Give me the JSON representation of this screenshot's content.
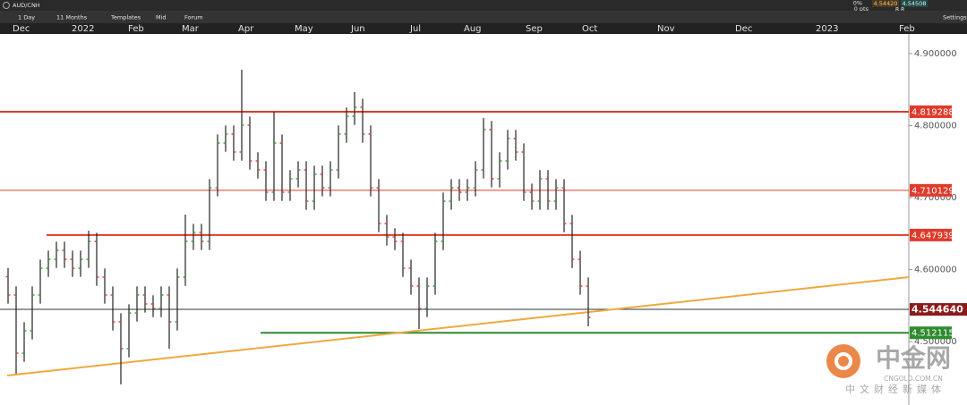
{
  "toolbar": {
    "symbol": "AUD/CNH",
    "interval": "1 Day",
    "range": "11 Months",
    "templates": "Templates",
    "price_mode": "Mid",
    "forum": "Forum",
    "settings": "Settings",
    "change_pct": "0%",
    "change_pts": "0 pts",
    "bid": "4.54420",
    "ask": "4.54508",
    "spread": "8.8"
  },
  "watermark": {
    "brand": "中金网",
    "domain": "CNGOLD.COM.CN",
    "slogan": "中文财经新媒体"
  },
  "chart_data": {
    "type": "ohlc",
    "x": [
      0,
      3,
      6,
      9,
      12,
      15,
      18,
      21,
      24,
      27,
      30,
      33,
      36,
      39,
      42,
      45,
      48,
      51,
      54,
      57,
      60,
      63,
      66,
      69,
      72,
      75,
      78,
      81,
      84,
      87,
      90,
      93,
      96,
      99,
      102,
      105,
      108,
      111,
      114,
      117,
      120,
      123,
      126,
      129,
      132,
      135,
      138,
      141,
      144,
      147,
      150,
      153,
      156,
      159,
      162,
      165,
      168,
      171,
      174,
      177,
      180,
      183,
      186,
      189,
      192,
      195,
      198,
      201,
      204,
      207,
      210,
      213,
      216
    ],
    "open": [
      4.59,
      4.5646,
      4.4838,
      4.5149,
      4.5646,
      4.6018,
      4.6143,
      4.6267,
      4.6143,
      4.6018,
      4.6143,
      4.6391,
      4.5894,
      4.5646,
      4.5273,
      4.49,
      4.5397,
      4.5646,
      4.5522,
      4.5459,
      4.5646,
      4.5273,
      4.5894,
      4.6391,
      4.6515,
      4.6391,
      4.7136,
      4.7757,
      4.7882,
      4.7633,
      4.8006,
      4.7509,
      4.7385,
      4.7074,
      4.7757,
      4.7074,
      4.7261,
      4.7385,
      4.695,
      4.7323,
      4.7136,
      4.7385,
      4.7882,
      4.813,
      4.8254,
      4.7882,
      4.7136,
      4.6639,
      4.6453,
      4.6391,
      4.6018,
      4.577,
      4.5459,
      4.577,
      4.6391,
      4.695,
      4.7136,
      4.7074,
      4.7136,
      4.7385,
      4.7944,
      4.7261,
      4.7509,
      4.782,
      4.7633,
      4.7074,
      4.695,
      4.7261,
      4.695,
      4.7136,
      4.6639,
      4.6142,
      4.577
    ],
    "high": [
      4.602,
      4.5766,
      4.5269,
      4.5766,
      4.6138,
      4.6263,
      4.6387,
      4.6387,
      4.6263,
      4.6263,
      4.654,
      4.6511,
      4.6014,
      4.5766,
      4.5393,
      4.5517,
      4.5766,
      4.5766,
      4.5642,
      4.5766,
      4.5766,
      4.6014,
      4.6764,
      4.6635,
      4.6635,
      4.7256,
      4.7877,
      4.8002,
      4.8002,
      4.8776,
      4.8126,
      4.7629,
      4.7505,
      4.8192,
      4.7877,
      4.7381,
      4.7505,
      4.7505,
      4.7443,
      4.7443,
      4.7505,
      4.8002,
      4.825,
      4.8466,
      4.8374,
      4.8002,
      4.7256,
      4.6759,
      4.6573,
      4.6511,
      4.6138,
      4.589,
      4.589,
      4.6511,
      4.707,
      4.7256,
      4.7256,
      4.7256,
      4.7505,
      4.8105,
      4.8064,
      4.7629,
      4.794,
      4.794,
      4.7753,
      4.7194,
      4.7381,
      4.7381,
      4.7256,
      4.7256,
      4.6759,
      4.6262,
      4.589
    ],
    "low": [
      4.5526,
      4.4553,
      4.4718,
      4.5029,
      4.5526,
      4.5898,
      4.6023,
      4.6023,
      4.5898,
      4.5898,
      4.6023,
      4.5774,
      4.5526,
      4.5153,
      4.4404,
      4.478,
      4.5277,
      4.5402,
      4.5339,
      4.5339,
      4.49,
      4.5153,
      4.5774,
      4.6271,
      4.6271,
      4.6271,
      4.7016,
      4.7637,
      4.7513,
      4.7513,
      4.7389,
      4.7265,
      4.6954,
      4.6954,
      4.6954,
      4.6954,
      4.7141,
      4.683,
      4.683,
      4.7016,
      4.7016,
      4.7265,
      4.7762,
      4.801,
      4.7762,
      4.7016,
      4.6519,
      4.6333,
      4.6271,
      4.5898,
      4.565,
      4.5174,
      4.5339,
      4.565,
      4.6271,
      4.683,
      4.6954,
      4.6954,
      4.7016,
      4.7265,
      4.7141,
      4.7141,
      4.7389,
      4.7513,
      4.6954,
      4.683,
      4.683,
      4.683,
      4.683,
      4.6519,
      4.6022,
      4.565,
      4.5211
    ],
    "close": [
      4.5646,
      4.4838,
      4.5149,
      4.5646,
      4.6018,
      4.6143,
      4.6267,
      4.6143,
      4.6018,
      4.6143,
      4.6391,
      4.5894,
      4.5646,
      4.5273,
      4.49,
      4.5397,
      4.5646,
      4.5522,
      4.5459,
      4.5646,
      4.5273,
      4.5894,
      4.6391,
      4.6515,
      4.6391,
      4.7136,
      4.7757,
      4.7882,
      4.7633,
      4.8006,
      4.7509,
      4.7385,
      4.7074,
      4.7757,
      4.7074,
      4.7261,
      4.7385,
      4.695,
      4.7323,
      4.7136,
      4.7385,
      4.7882,
      4.813,
      4.8254,
      4.7882,
      4.7136,
      4.6639,
      4.6453,
      4.6391,
      4.6018,
      4.577,
      4.5459,
      4.577,
      4.6391,
      4.695,
      4.7136,
      4.7074,
      4.7136,
      4.7385,
      4.7944,
      4.7261,
      4.7509,
      4.782,
      4.7633,
      4.7074,
      4.695,
      4.7261,
      4.695,
      4.7136,
      4.6639,
      4.6142,
      4.577,
      4.5335
    ],
    "up_color": "#3a9a3a",
    "down_color": "#d04040",
    "bar_color": "#222222",
    "xlim": [
      -3,
      335.33
    ],
    "xticks": [
      {
        "value": 1,
        "label": "Dec"
      },
      {
        "value": 23,
        "label": "2022"
      },
      {
        "value": 44,
        "label": "Feb"
      },
      {
        "value": 64,
        "label": "Mar"
      },
      {
        "value": 85,
        "label": "Apr"
      },
      {
        "value": 106,
        "label": "May"
      },
      {
        "value": 127,
        "label": "Jun"
      },
      {
        "value": 149,
        "label": "Jul"
      },
      {
        "value": 169,
        "label": "Aug"
      },
      {
        "value": 192,
        "label": "Sep"
      },
      {
        "value": 213,
        "label": "Oct"
      },
      {
        "value": 241,
        "label": "Nov"
      },
      {
        "value": 270,
        "label": "Dec"
      },
      {
        "value": 300,
        "label": "2023"
      },
      {
        "value": 331,
        "label": "Feb"
      }
    ],
    "ylim": [
      4.4118,
      4.9273
    ],
    "yticks": [
      {
        "value": 4.9,
        "label": "4.900000"
      },
      {
        "value": 4.8,
        "label": "4.800000"
      },
      {
        "value": 4.7,
        "label": "4.700000"
      },
      {
        "value": 4.6,
        "label": "4.600000"
      },
      {
        "value": 4.5,
        "label": "4.500000"
      }
    ],
    "levels": [
      {
        "value": 4.819288,
        "label": "4.819288",
        "color": "#e03a2a",
        "line_color": "#e03a2a",
        "width": 2,
        "x_start": -3
      },
      {
        "value": 4.710129,
        "label": "4.710129",
        "color": "#e03a2a",
        "line_color": "#e03a2a",
        "width": 1,
        "x_start": -3
      },
      {
        "value": 4.647939,
        "label": "4.647939",
        "color": "#e03a2a",
        "line_color": "#e03a2a",
        "width": 2,
        "x_start": 14.3
      },
      {
        "value": 4.54464,
        "label": "4.544640",
        "color": "#8b1a1a",
        "line_color": "#333333",
        "width": 1,
        "x_start": -3
      },
      {
        "value": 4.512115,
        "label": "4.512115",
        "color": "#2e8b2e",
        "line_color": "#2e8b2e",
        "width": 2,
        "x_start": 94
      }
    ],
    "trendline": {
      "x": [
        -0.3,
        335.3
      ],
      "y": [
        4.4528,
        4.5894
      ],
      "color": "#f0a840"
    }
  }
}
